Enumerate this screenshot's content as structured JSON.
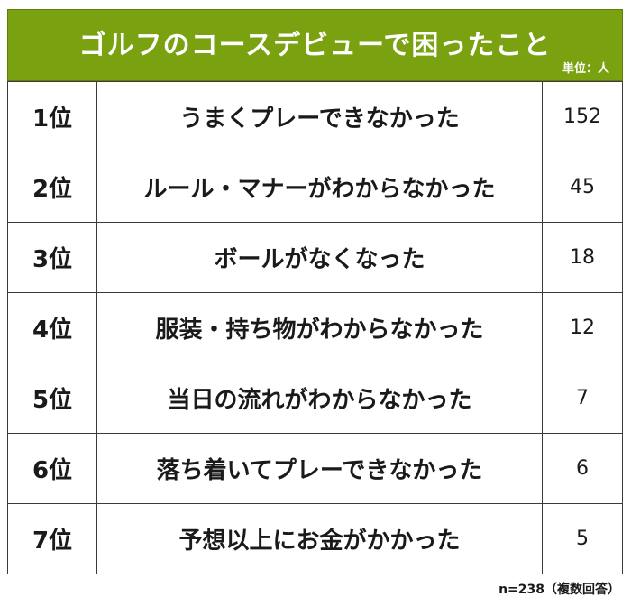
{
  "header": {
    "title": "ゴルフのコースデビューで困ったこと",
    "unit": "単位：人"
  },
  "footnote": "n=238（複数回答）",
  "chart_data": {
    "type": "table",
    "title": "ゴルフのコースデビューで困ったこと",
    "unit": "単位：人",
    "ranks": [
      "1位",
      "2位",
      "3位",
      "4位",
      "5位",
      "6位",
      "7位"
    ],
    "categories": [
      "うまくプレーできなかった",
      "ルール・マナーがわからなかった",
      "ボールがなくなった",
      "服装・持ち物がわからなかった",
      "当日の流れがわからなかった",
      "落ち着いてプレーできなかった",
      "予想以上にお金がかかった"
    ],
    "values": [
      152,
      45,
      18,
      12,
      7,
      6,
      5
    ],
    "note": "n=238（複数回答）"
  }
}
